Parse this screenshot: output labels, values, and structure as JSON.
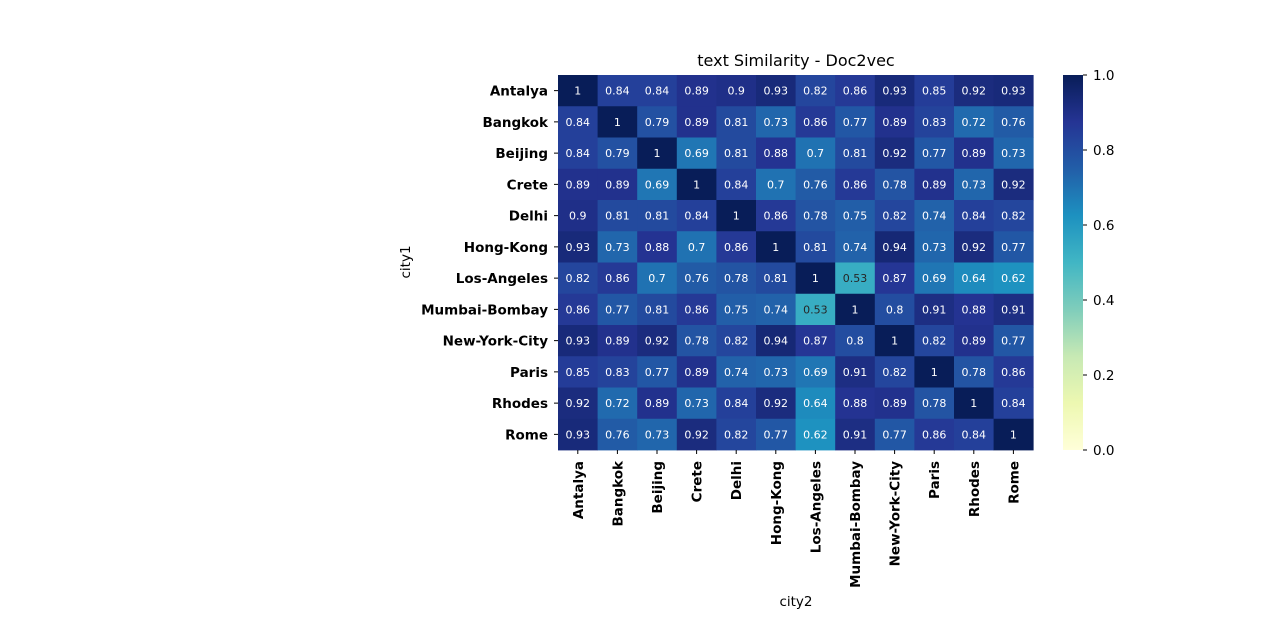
{
  "chart_data": {
    "type": "heatmap",
    "title": "text Similarity - Doc2vec",
    "xlabel": "city2",
    "ylabel": "city1",
    "rows": [
      "Antalya",
      "Bangkok",
      "Beijing",
      "Crete",
      "Delhi",
      "Hong-Kong",
      "Los-Angeles",
      "Mumbai-Bombay",
      "New-York-City",
      "Paris",
      "Rhodes",
      "Rome"
    ],
    "cols": [
      "Antalya",
      "Bangkok",
      "Beijing",
      "Crete",
      "Delhi",
      "Hong-Kong",
      "Los-Angeles",
      "Mumbai-Bombay",
      "New-York-City",
      "Paris",
      "Rhodes",
      "Rome"
    ],
    "values": [
      [
        1,
        0.84,
        0.84,
        0.89,
        0.9,
        0.93,
        0.82,
        0.86,
        0.93,
        0.85,
        0.92,
        0.93
      ],
      [
        0.84,
        1,
        0.79,
        0.89,
        0.81,
        0.73,
        0.86,
        0.77,
        0.89,
        0.83,
        0.72,
        0.76
      ],
      [
        0.84,
        0.79,
        1,
        0.69,
        0.81,
        0.88,
        0.7,
        0.81,
        0.92,
        0.77,
        0.89,
        0.73
      ],
      [
        0.89,
        0.89,
        0.69,
        1,
        0.84,
        0.7,
        0.76,
        0.86,
        0.78,
        0.89,
        0.73,
        0.92
      ],
      [
        0.9,
        0.81,
        0.81,
        0.84,
        1,
        0.86,
        0.78,
        0.75,
        0.82,
        0.74,
        0.84,
        0.82
      ],
      [
        0.93,
        0.73,
        0.88,
        0.7,
        0.86,
        1,
        0.81,
        0.74,
        0.94,
        0.73,
        0.92,
        0.77
      ],
      [
        0.82,
        0.86,
        0.7,
        0.76,
        0.78,
        0.81,
        1,
        0.53,
        0.87,
        0.69,
        0.64,
        0.62
      ],
      [
        0.86,
        0.77,
        0.81,
        0.86,
        0.75,
        0.74,
        0.53,
        1,
        0.8,
        0.91,
        0.88,
        0.91
      ],
      [
        0.93,
        0.89,
        0.92,
        0.78,
        0.82,
        0.94,
        0.87,
        0.8,
        1,
        0.82,
        0.89,
        0.77
      ],
      [
        0.85,
        0.83,
        0.77,
        0.89,
        0.74,
        0.73,
        0.69,
        0.91,
        0.82,
        1,
        0.78,
        0.86
      ],
      [
        0.92,
        0.72,
        0.89,
        0.73,
        0.84,
        0.92,
        0.64,
        0.88,
        0.89,
        0.78,
        1,
        0.84
      ],
      [
        0.93,
        0.76,
        0.73,
        0.92,
        0.82,
        0.77,
        0.62,
        0.91,
        0.77,
        0.86,
        0.84,
        1
      ]
    ],
    "colormap": "YlGnBu",
    "vmin": 0,
    "vmax": 1,
    "colorbar_ticks": [
      "0.0",
      "0.2",
      "0.4",
      "0.6",
      "0.8",
      "1.0"
    ],
    "annotations": true,
    "grid": false
  }
}
